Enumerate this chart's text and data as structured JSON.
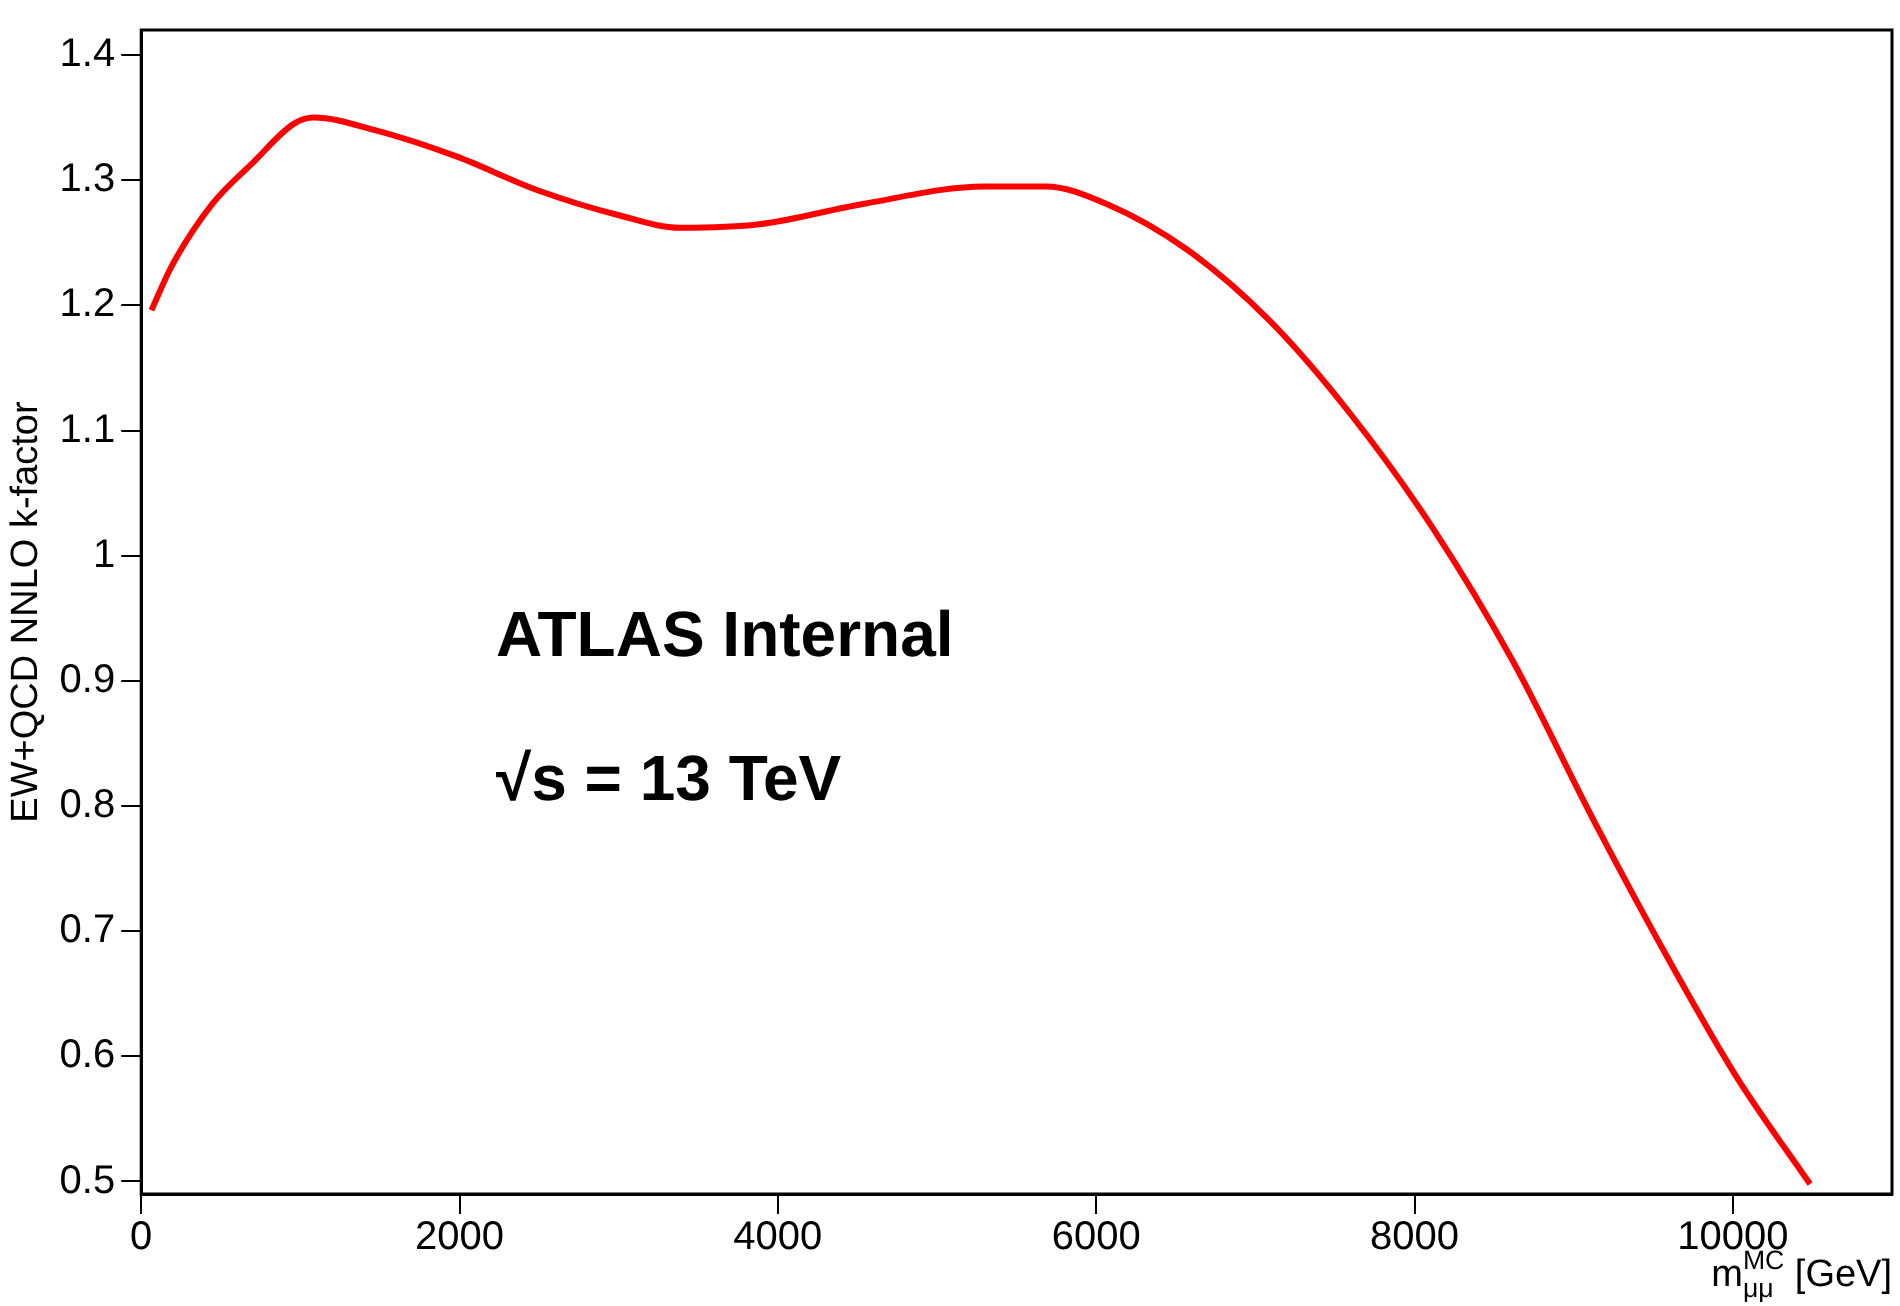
{
  "chart_data": {
    "type": "line",
    "xlabel": "m$_{μμ}$$^{MC}$ [GeV]",
    "ylabel": "EW+QCD NNLO k-factor",
    "annotations": [
      "ATLAS Internal",
      "√s = 13 TeV"
    ],
    "x": [
      64,
      190,
      447,
      702,
      958,
      1085,
      1469,
      1980,
      2490,
      3001,
      3384,
      3895,
      4534,
      5300,
      5683,
      6066,
      6577,
      7088,
      7599,
      8110,
      8621,
      9132,
      9642,
      10026,
      10485
    ],
    "series": [
      {
        "color": "#ff0000",
        "values": [
          1.196,
          1.231,
          1.281,
          1.314,
          1.345,
          1.35,
          1.34,
          1.319,
          1.292,
          1.272,
          1.262,
          1.265,
          1.281,
          1.295,
          1.295,
          1.281,
          1.244,
          1.188,
          1.113,
          1.023,
          0.915,
          0.787,
          0.667,
          0.583,
          0.498
        ]
      }
    ],
    "xlim": [
      0,
      11000
    ],
    "xticks": [
      0,
      2000,
      4000,
      6000,
      8000,
      10000
    ],
    "ylim": [
      0.49,
      1.42
    ],
    "yticks": [
      0.5,
      0.6,
      0.7,
      0.8,
      0.9,
      1,
      1.1,
      1.2,
      1.3,
      1.4
    ],
    "grid": false,
    "legend": false,
    "marker": "none",
    "line_style": "solid"
  }
}
